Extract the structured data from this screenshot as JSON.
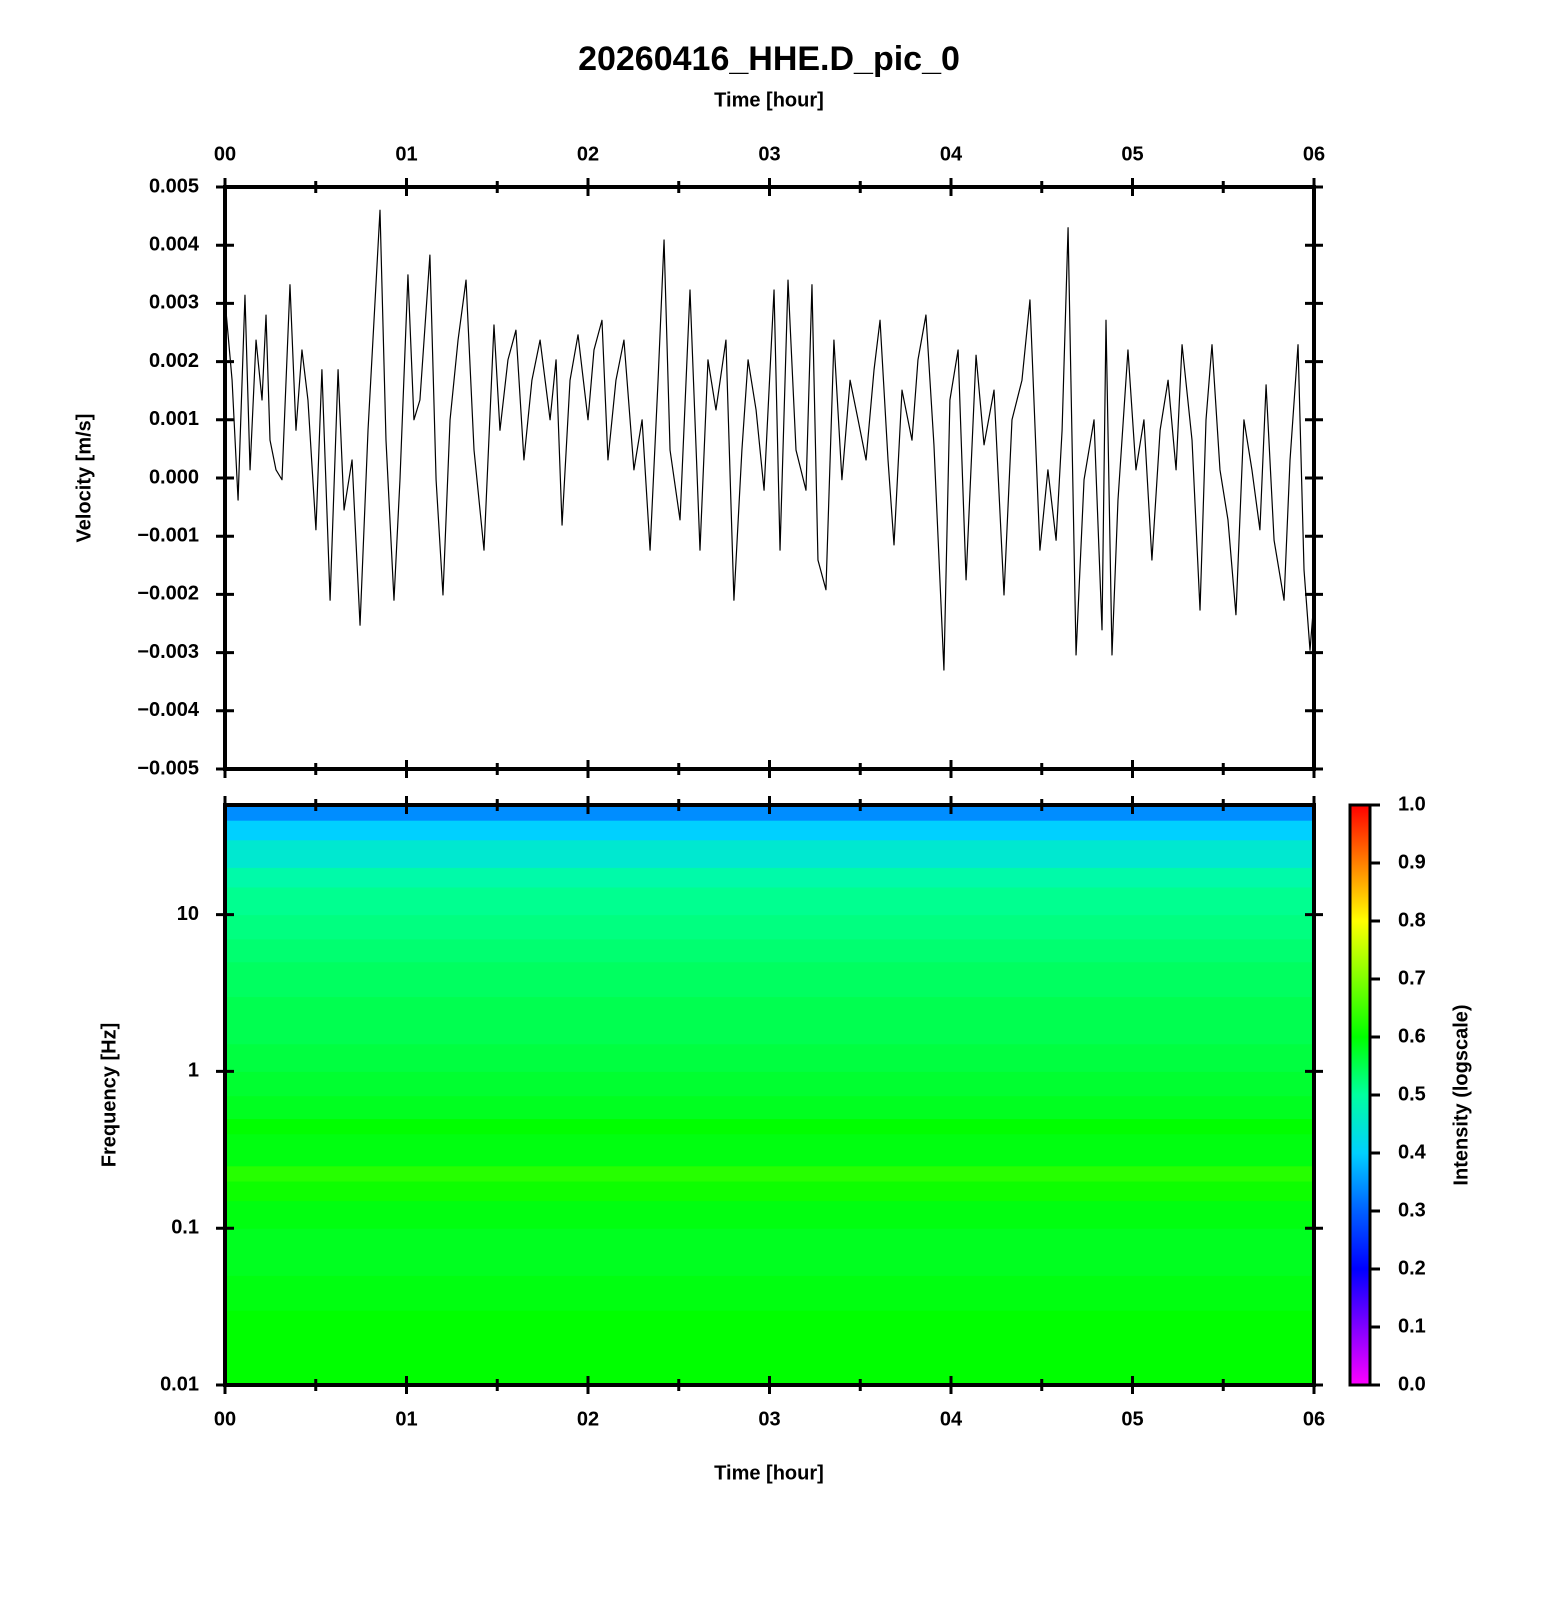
{
  "chart_data": [
    {
      "type": "line",
      "title": "20260416_HHE.D_pic_0",
      "x_label": "Time [hour]",
      "y_label": "Velocity [m/s]",
      "color": "#000000",
      "xlim": [
        0,
        6
      ],
      "xticks": [
        {
          "value": 0,
          "label": "00"
        },
        {
          "value": 1,
          "label": "01"
        },
        {
          "value": 2,
          "label": "02"
        },
        {
          "value": 3,
          "label": "03"
        },
        {
          "value": 4,
          "label": "04"
        },
        {
          "value": 5,
          "label": "05"
        },
        {
          "value": 6,
          "label": "06"
        }
      ],
      "xminorticks": [
        0.5,
        1.5,
        2.5,
        3.5,
        4.5,
        5.5
      ],
      "ylim": [
        -0.005,
        0.005
      ],
      "yticks": [
        {
          "value": -0.005,
          "label": "−0.005"
        },
        {
          "value": -0.004,
          "label": "−0.004"
        },
        {
          "value": -0.003,
          "label": "−0.003"
        },
        {
          "value": -0.002,
          "label": "−0.002"
        },
        {
          "value": -0.001,
          "label": "−0.001"
        },
        {
          "value": 0,
          "label": "0.000"
        },
        0.001,
        0.002,
        0.003,
        0.004,
        0.005
      ],
      "x": [
        0,
        0.039,
        0.072,
        0.11,
        0.138,
        0.171,
        0.204,
        0.226,
        0.248,
        0.281,
        0.314,
        0.358,
        0.391,
        0.424,
        0.457,
        0.501,
        0.534,
        0.579,
        0.623,
        0.656,
        0.7,
        0.744,
        0.788,
        0.854,
        0.887,
        0.931,
        0.964,
        1.008,
        1.041,
        1.074,
        1.129,
        1.163,
        1.201,
        1.24,
        1.284,
        1.328,
        1.372,
        1.427,
        1.482,
        1.515,
        1.559,
        1.603,
        1.647,
        1.691,
        1.736,
        1.791,
        1.824,
        1.857,
        1.901,
        1.945,
        2.0,
        2.033,
        2.077,
        2.11,
        2.154,
        2.198,
        2.253,
        2.298,
        2.342,
        2.386,
        2.419,
        2.452,
        2.507,
        2.562,
        2.617,
        2.661,
        2.705,
        2.76,
        2.804,
        2.848,
        2.882,
        2.926,
        2.97,
        3.025,
        3.058,
        3.102,
        3.146,
        3.201,
        3.234,
        3.267,
        3.311,
        3.355,
        3.399,
        3.444,
        3.488,
        3.532,
        3.576,
        3.609,
        3.653,
        3.686,
        3.73,
        3.785,
        3.818,
        3.862,
        3.906,
        3.961,
        3.994,
        4.039,
        4.083,
        4.138,
        4.182,
        4.237,
        4.292,
        4.336,
        4.391,
        4.435,
        4.49,
        4.534,
        4.579,
        4.612,
        4.645,
        4.689,
        4.733,
        4.788,
        4.832,
        4.854,
        4.887,
        4.92,
        4.975,
        5.019,
        5.063,
        5.107,
        5.152,
        5.196,
        5.24,
        5.273,
        5.328,
        5.372,
        5.405,
        5.438,
        5.482,
        5.526,
        5.57,
        5.614,
        5.658,
        5.702,
        5.736,
        5.78,
        5.835,
        5.868,
        5.912,
        5.945,
        5.978,
        6.0
      ],
      "values": [
        0.00306,
        0.00168,
        -0.00038,
        0.00314,
        0.00014,
        0.00237,
        0.00134,
        0.0028,
        0.00065,
        0.00014,
        -3e-05,
        0.00332,
        0.00082,
        0.0022,
        0.00134,
        -0.00089,
        0.00186,
        -0.0021,
        0.00186,
        -0.00055,
        0.00031,
        -0.00253,
        0.00082,
        0.0046,
        0.00065,
        -0.0021,
        -3e-05,
        0.00349,
        0.001,
        0.00134,
        0.00383,
        -3e-05,
        -0.00201,
        0.001,
        0.00237,
        0.0034,
        0.00048,
        -0.00124,
        0.00263,
        0.00082,
        0.00203,
        0.00254,
        0.00031,
        0.00168,
        0.00237,
        0.001,
        0.00203,
        -0.00081,
        0.00168,
        0.00246,
        0.001,
        0.0022,
        0.00271,
        0.00031,
        0.00168,
        0.00237,
        0.00014,
        0.001,
        -0.00124,
        0.00168,
        0.00409,
        0.00048,
        -0.00072,
        0.00323,
        -0.00124,
        0.00203,
        0.00117,
        0.00237,
        -0.0021,
        0.00048,
        0.00203,
        0.00117,
        -0.00021,
        0.00323,
        -0.00124,
        0.0034,
        0.00048,
        -0.00021,
        0.00332,
        -0.00141,
        -0.00192,
        0.00237,
        -3e-05,
        0.00168,
        0.001,
        0.00031,
        0.00186,
        0.00271,
        0.00031,
        -0.00115,
        0.00151,
        0.00065,
        0.00203,
        0.0028,
        0.00057,
        -0.0033,
        0.00134,
        0.0022,
        -0.00175,
        0.00211,
        0.00057,
        0.00151,
        -0.00201,
        0.001,
        0.00168,
        0.00306,
        -0.00124,
        0.00014,
        -0.00107,
        0.00082,
        0.0043,
        -0.00304,
        -3e-05,
        0.001,
        -0.00261,
        0.00271,
        -0.00304,
        -0.00038,
        0.0022,
        0.00014,
        0.001,
        -0.00141,
        0.00082,
        0.00168,
        0.00014,
        0.00229,
        0.00065,
        -0.00227,
        0.001,
        0.00229,
        0.00014,
        -0.00072,
        -0.00235,
        0.001,
        0.00014,
        -0.00089,
        0.0016,
        -0.00107,
        -0.0021,
        0.00031,
        0.00229,
        -0.00158,
        -0.00296,
        -0.0021
      ]
    },
    {
      "type": "heatmap",
      "x_label": "Time [hour]",
      "y_label": "Frequency [Hz]",
      "xlim": [
        0,
        6
      ],
      "xticks": [
        {
          "value": 0,
          "label": "00"
        },
        {
          "value": 1,
          "label": "01"
        },
        {
          "value": 2,
          "label": "02"
        },
        {
          "value": 3,
          "label": "03"
        },
        {
          "value": 4,
          "label": "04"
        },
        {
          "value": 5,
          "label": "05"
        },
        {
          "value": 6,
          "label": "06"
        }
      ],
      "xminorticks": [
        0.5,
        1.5,
        2.5,
        3.5,
        4.5,
        5.5
      ],
      "yscale": "log",
      "ylim": [
        0.01,
        50
      ],
      "yticks": [
        0.01,
        0.1,
        1,
        10
      ],
      "frequency_bins": [
        0.01,
        0.02,
        0.03,
        0.05,
        0.07,
        0.1,
        0.15,
        0.2,
        0.25,
        0.3,
        0.4,
        0.5,
        0.7,
        1,
        1.5,
        2,
        3,
        5,
        7,
        10,
        15,
        20,
        30,
        40,
        50
      ],
      "intensity": [
        0.6,
        0.6,
        0.59,
        0.58,
        0.58,
        0.59,
        0.61,
        0.63,
        0.59,
        0.59,
        0.6,
        0.58,
        0.57,
        0.56,
        0.55,
        0.55,
        0.54,
        0.53,
        0.52,
        0.51,
        0.49,
        0.45,
        0.4,
        0.34
      ],
      "colorbar": {
        "label": "Intensity (logscale)",
        "lim": [
          0,
          1
        ],
        "ticks": [
          {
            "value": 0,
            "label": "0.0"
          },
          0.1,
          0.2,
          0.3,
          0.4,
          0.5,
          0.6,
          0.7,
          0.8,
          0.9,
          {
            "value": 1,
            "label": "1.0"
          }
        ],
        "colormap": [
          "#ff00ff",
          "#8000ff",
          "#0000ff",
          "#0060ff",
          "#00d0ff",
          "#00ffa0",
          "#00ff00",
          "#80ff00",
          "#ffff00",
          "#ff8000",
          "#ff0000"
        ]
      }
    }
  ]
}
